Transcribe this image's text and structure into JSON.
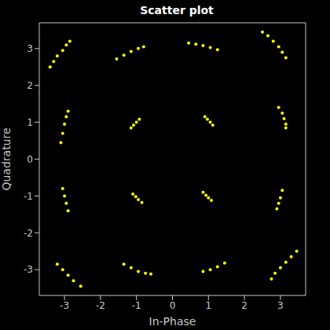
{
  "chart_data": {
    "type": "scatter",
    "title": "Scatter plot",
    "x_label": "In-Phase",
    "y_label": "Quadrature",
    "color": "#ffff00",
    "marker": "dot",
    "grid": false,
    "xlim": [
      -3.7,
      3.7
    ],
    "ylim": [
      -3.7,
      3.7
    ],
    "xticks": [
      -3,
      -2,
      -1,
      0,
      1,
      2,
      3
    ],
    "yticks": [
      -3,
      -2,
      -1,
      0,
      1,
      2,
      3
    ],
    "x": [
      2.5,
      2.65,
      2.8,
      2.95,
      3.05,
      3.15,
      -3.4,
      -3.3,
      -3.2,
      -3.05,
      -2.95,
      -2.85,
      -3.2,
      -3.05,
      -2.9,
      -2.75,
      -2.55,
      2.85,
      3.0,
      3.15,
      3.3,
      3.45,
      2.75,
      2.95,
      3.05,
      3.1,
      3.15,
      3.15,
      -3.1,
      -3.05,
      -3.0,
      -2.95,
      -2.9,
      -3.05,
      -3.0,
      -2.95,
      -2.9,
      2.9,
      2.95,
      3.0,
      3.05,
      0.45,
      0.65,
      0.85,
      1.05,
      1.25,
      -1.55,
      -1.35,
      -1.15,
      -0.95,
      -0.8,
      -1.35,
      -1.15,
      -0.95,
      -0.75,
      -0.6,
      0.85,
      1.05,
      1.25,
      1.45,
      0.9,
      0.97,
      1.05,
      1.12,
      -1.15,
      -1.08,
      -1.0,
      -0.92,
      -1.1,
      -1.02,
      -0.95,
      -0.85,
      0.85,
      0.93,
      1.0,
      1.08
    ],
    "values": [
      3.45,
      3.35,
      3.2,
      3.05,
      2.9,
      2.75,
      2.5,
      2.65,
      2.8,
      2.95,
      3.1,
      3.2,
      -2.85,
      -3.0,
      -3.15,
      -3.3,
      -3.45,
      -3.1,
      -2.95,
      -2.8,
      -2.65,
      -2.5,
      -3.25,
      1.4,
      1.25,
      1.1,
      0.95,
      0.85,
      0.45,
      0.7,
      0.95,
      1.15,
      1.3,
      -0.8,
      -1.0,
      -1.2,
      -1.4,
      -1.35,
      -1.2,
      -1.05,
      -0.85,
      3.15,
      3.12,
      3.08,
      3.03,
      2.97,
      2.72,
      2.82,
      2.92,
      3.0,
      3.05,
      -2.85,
      -2.95,
      -3.05,
      -3.1,
      -3.12,
      -3.05,
      -3.0,
      -2.92,
      -2.82,
      1.15,
      1.08,
      1.0,
      0.92,
      0.85,
      0.92,
      1.0,
      1.08,
      -0.95,
      -1.02,
      -1.1,
      -1.18,
      -0.9,
      -0.98,
      -1.05,
      -1.12
    ]
  }
}
